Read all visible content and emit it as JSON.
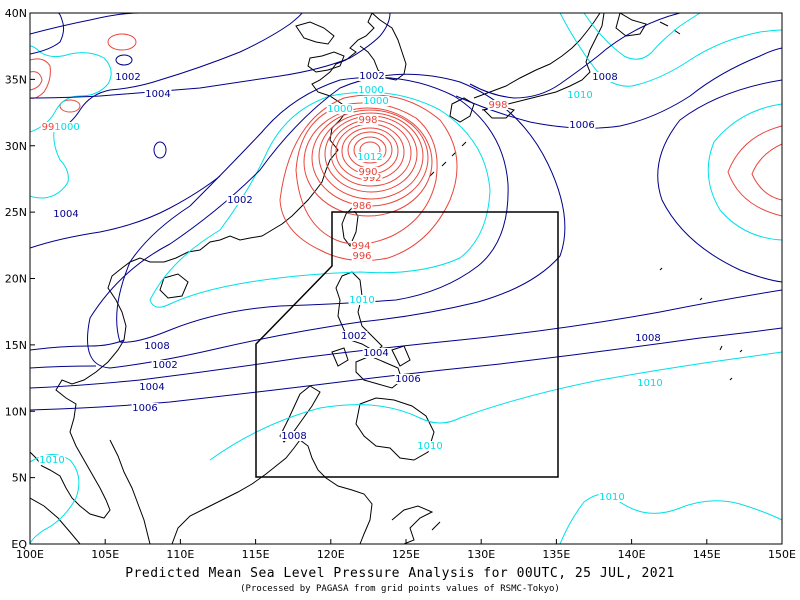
{
  "map": {
    "lon_ticks": [
      "100E",
      "105E",
      "110E",
      "115E",
      "120E",
      "125E",
      "130E",
      "135E",
      "140E",
      "145E",
      "150E"
    ],
    "lat_ticks": [
      "EQ",
      "5N",
      "10N",
      "15N",
      "20N",
      "25N",
      "30N",
      "35N",
      "40N"
    ],
    "colors": {
      "low": "#e8463c",
      "mid": "#00e0e8",
      "high": "#00008b",
      "coast": "#000000",
      "box": "#000000"
    },
    "isobar_labels": [
      {
        "text": "1002",
        "color": "high"
      },
      {
        "text": "1004",
        "color": "high"
      },
      {
        "text": "99",
        "color": "low"
      },
      {
        "text": "1000",
        "color": "mid"
      },
      {
        "text": "1002",
        "color": "high"
      },
      {
        "text": "1000",
        "color": "mid"
      },
      {
        "text": "1000",
        "color": "mid"
      },
      {
        "text": "1004",
        "color": "high"
      },
      {
        "text": "1002",
        "color": "high"
      },
      {
        "text": "1000",
        "color": "mid"
      },
      {
        "text": "998",
        "color": "low"
      },
      {
        "text": "992",
        "color": "low"
      },
      {
        "text": "990",
        "color": "low"
      },
      {
        "text": "986",
        "color": "low"
      },
      {
        "text": "994",
        "color": "low"
      },
      {
        "text": "996",
        "color": "low"
      },
      {
        "text": "998",
        "color": "low"
      },
      {
        "text": "1006",
        "color": "high"
      },
      {
        "text": "1008",
        "color": "high"
      },
      {
        "text": "1010",
        "color": "mid"
      },
      {
        "text": "1010",
        "color": "mid"
      },
      {
        "text": "1002",
        "color": "high"
      },
      {
        "text": "1004",
        "color": "high"
      },
      {
        "text": "1006",
        "color": "high"
      },
      {
        "text": "1008",
        "color": "high"
      },
      {
        "text": "1008",
        "color": "high"
      },
      {
        "text": "1002",
        "color": "high"
      },
      {
        "text": "1004",
        "color": "high"
      },
      {
        "text": "1006",
        "color": "high"
      },
      {
        "text": "1008",
        "color": "high"
      },
      {
        "text": "1010",
        "color": "mid"
      },
      {
        "text": "1010",
        "color": "mid"
      },
      {
        "text": "1010",
        "color": "mid"
      },
      {
        "text": "1010",
        "color": "mid"
      },
      {
        "text": "1012",
        "color": "mid"
      }
    ]
  },
  "title": "Predicted Mean Sea Level Pressure Analysis for 00UTC, 25 JUL, 2021",
  "subtitle": "(Processed by PAGASA from grid points values of RSMC-Tokyo)"
}
